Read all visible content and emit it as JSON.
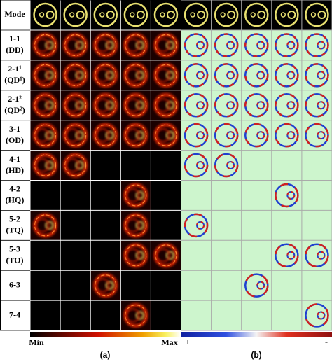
{
  "header": {
    "mode_label": "Mode"
  },
  "rows": [
    {
      "mode": "1-1",
      "name": "(DD)"
    },
    {
      "mode": "2-1¹",
      "name": "(QD¹)"
    },
    {
      "mode": "2-1²",
      "name": "(QD²)"
    },
    {
      "mode": "3-1",
      "name": "(OD)"
    },
    {
      "mode": "4-1",
      "name": "(HD)"
    },
    {
      "mode": "4-2",
      "name": "(HQ)"
    },
    {
      "mode": "5-2",
      "name": "(TQ)"
    },
    {
      "mode": "5-3",
      "name": "(TO)"
    },
    {
      "mode": "6-3",
      "name": ""
    },
    {
      "mode": "7-4",
      "name": ""
    }
  ],
  "colorbars": {
    "a": {
      "min": "Min",
      "max": "Max"
    },
    "b": {
      "plus": "+",
      "minus": "-"
    }
  },
  "panels": [
    "(a)",
    "(b)"
  ]
}
